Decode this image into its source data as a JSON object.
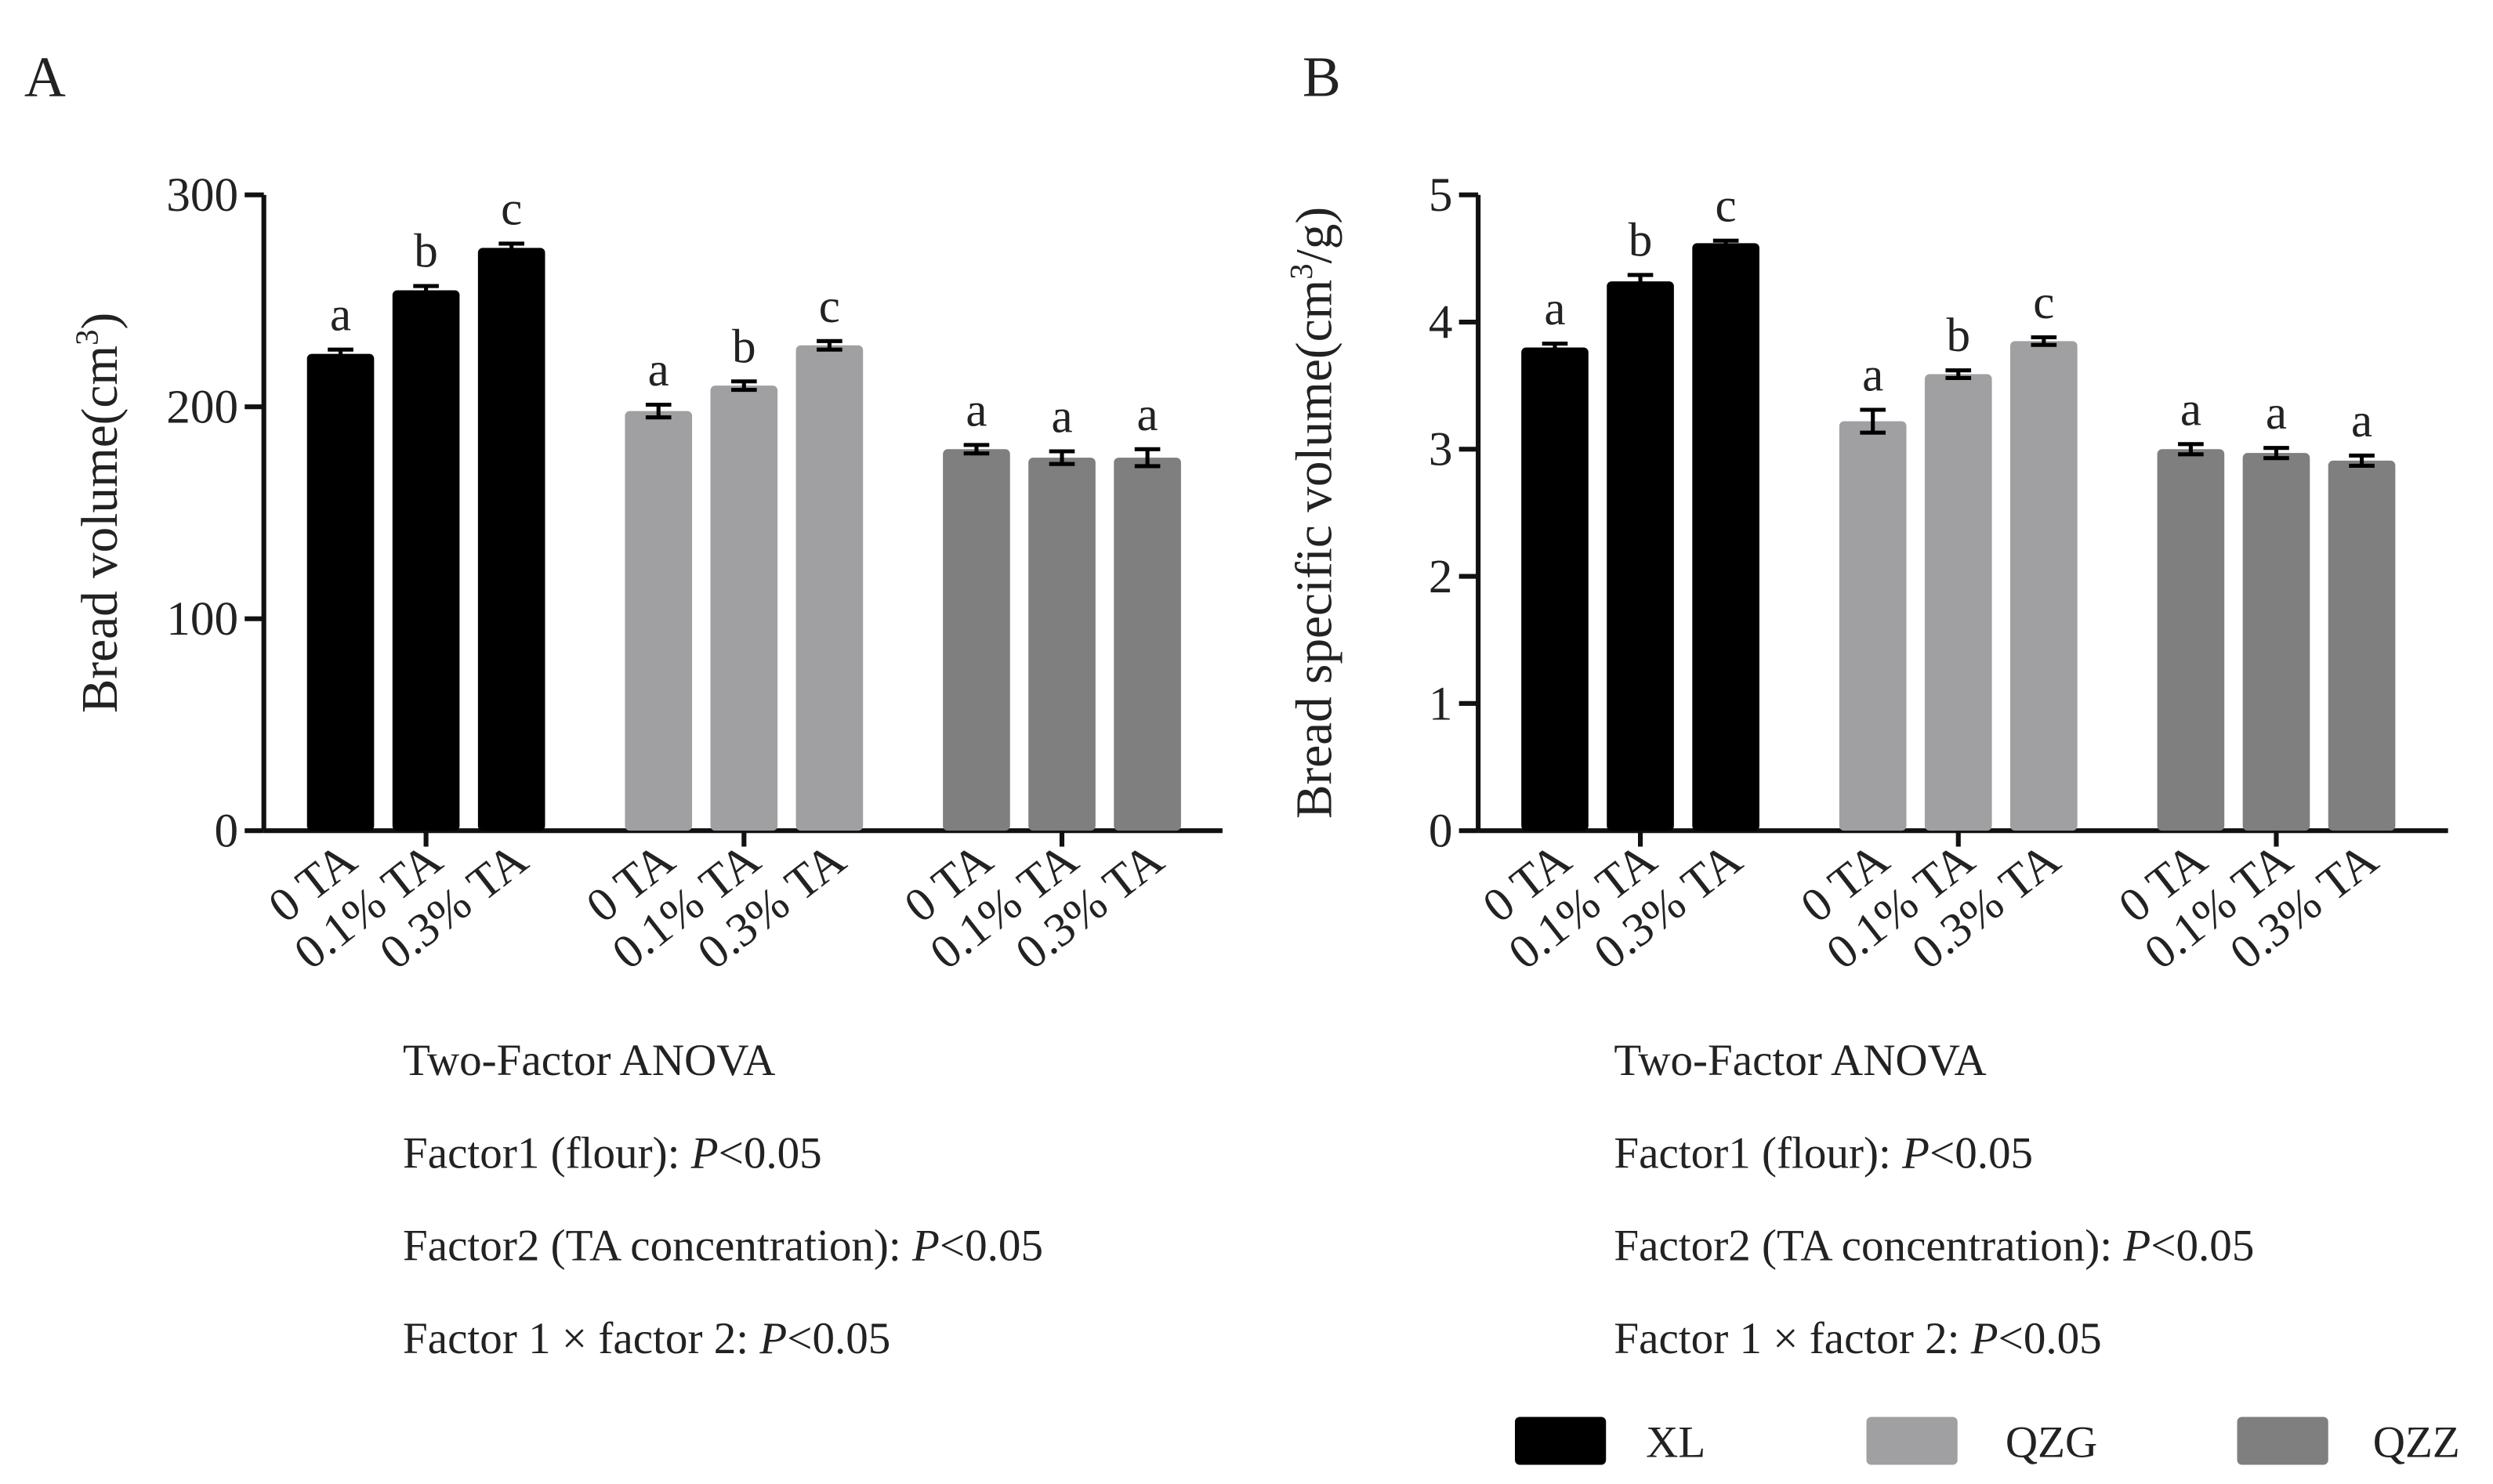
{
  "legend": [
    {
      "name": "XL",
      "color": "#000000"
    },
    {
      "name": "QZG",
      "color": "#a0a0a2"
    },
    {
      "name": "QZZ",
      "color": "#7f7f7f"
    }
  ],
  "chart_data": [
    {
      "type": "bar",
      "panel": "A",
      "y_label": [
        "Bread volume(cm",
        "3",
        ")"
      ],
      "categories": [
        "0 TA",
        "0.1% TA",
        "0.3% TA"
      ],
      "series": [
        {
          "values": [
            225,
            255,
            275
          ],
          "errors": [
            2,
            2,
            2
          ],
          "annotations": [
            "a",
            "b",
            "c"
          ]
        },
        {
          "values": [
            198,
            210,
            229
          ],
          "errors": [
            3,
            2,
            2
          ],
          "annotations": [
            "a",
            "b",
            "c"
          ]
        },
        {
          "values": [
            180,
            176,
            176
          ],
          "errors": [
            2,
            3,
            4
          ],
          "annotations": [
            "a",
            "a",
            "a"
          ]
        }
      ],
      "ylim": [
        0,
        300
      ],
      "yticks": [
        0,
        100,
        200,
        300
      ],
      "anova": [
        [
          "Two-Factor ANOVA"
        ],
        [
          "Factor1 (flour): ",
          "P",
          "<0.05"
        ],
        [
          "Factor2 (TA concentration): ",
          "P",
          "<0.05"
        ],
        [
          "Factor 1 × factor 2: ",
          "P",
          "<0.05"
        ]
      ]
    },
    {
      "type": "bar",
      "panel": "B",
      "y_label": [
        "Bread specific volume(cm",
        "3",
        "/g)"
      ],
      "categories": [
        "0 TA",
        "0.1% TA",
        "0.3% TA"
      ],
      "series": [
        {
          "values": [
            3.8,
            4.32,
            4.62
          ],
          "errors": [
            0.03,
            0.05,
            0.02
          ],
          "annotations": [
            "a",
            "b",
            "c"
          ]
        },
        {
          "values": [
            3.22,
            3.59,
            3.85
          ],
          "errors": [
            0.09,
            0.03,
            0.03
          ],
          "annotations": [
            "a",
            "b",
            "c"
          ]
        },
        {
          "values": [
            3.0,
            2.97,
            2.91
          ],
          "errors": [
            0.04,
            0.04,
            0.04
          ],
          "annotations": [
            "a",
            "a",
            "a"
          ]
        }
      ],
      "ylim": [
        0,
        5
      ],
      "yticks": [
        0,
        1,
        2,
        3,
        4,
        5
      ],
      "anova": [
        [
          "Two-Factor ANOVA"
        ],
        [
          "Factor1 (flour): ",
          "P",
          "<0.05"
        ],
        [
          "Factor2 (TA concentration): ",
          "P",
          "<0.05"
        ],
        [
          "Factor 1 × factor 2: ",
          "P",
          "<0.05"
        ]
      ]
    }
  ]
}
